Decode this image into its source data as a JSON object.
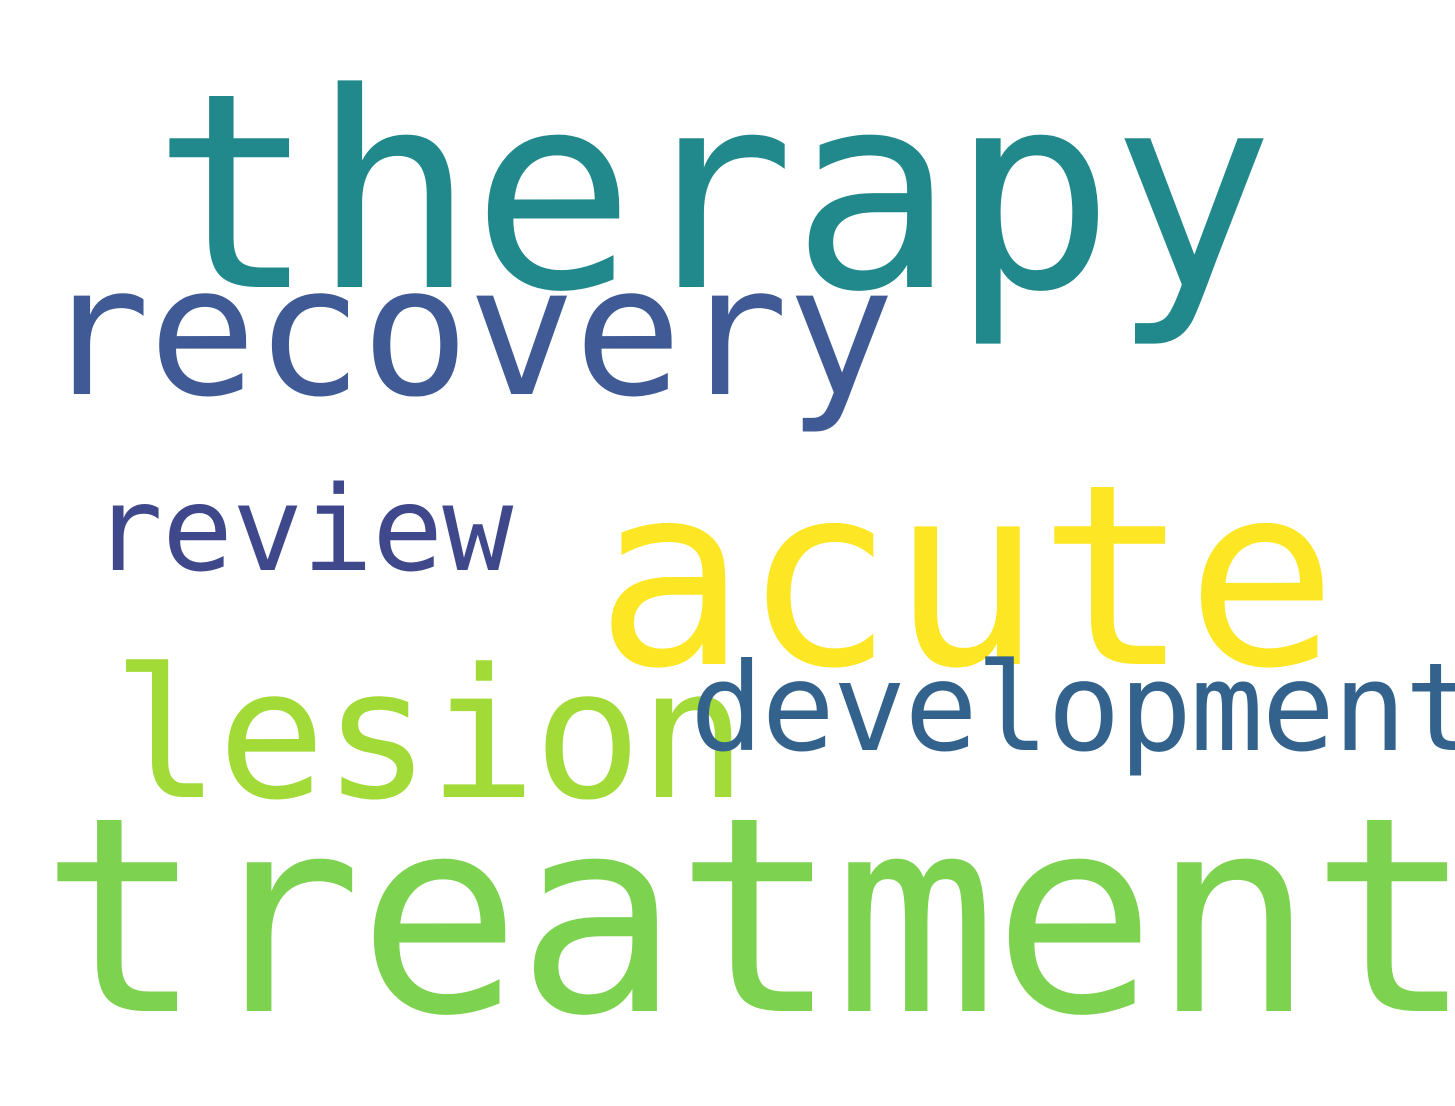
{
  "words": [
    {
      "id": "therapy",
      "text": "therapy",
      "color": "#21898c"
    },
    {
      "id": "recovery",
      "text": "recovery",
      "color": "#3f5a94"
    },
    {
      "id": "review",
      "text": "review",
      "color": "#40488c"
    },
    {
      "id": "acute",
      "text": "acute",
      "color": "#fde725"
    },
    {
      "id": "lesion",
      "text": "lesion",
      "color": "#a2da37"
    },
    {
      "id": "development",
      "text": "development",
      "color": "#33638d"
    },
    {
      "id": "treatment",
      "text": "treatment",
      "color": "#7dd250"
    }
  ]
}
